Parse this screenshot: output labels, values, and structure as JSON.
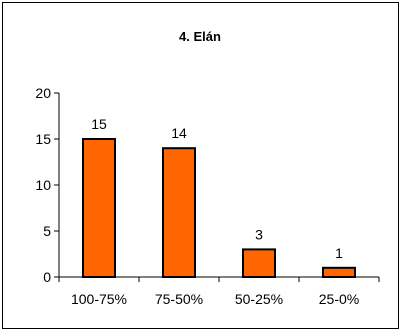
{
  "chart_data": {
    "type": "bar",
    "title": "4. Elán",
    "categories": [
      "100-75%",
      "75-50%",
      "50-25%",
      "25-0%"
    ],
    "values": [
      15,
      14,
      3,
      1
    ],
    "data_labels": [
      "15",
      "14",
      "3",
      "1"
    ],
    "ylim": [
      0,
      20
    ],
    "yticks": [
      0,
      5,
      10,
      15,
      20
    ],
    "ytick_labels": [
      "0",
      "5",
      "10",
      "15",
      "20"
    ],
    "xlabel": "",
    "ylabel": "",
    "grid": false,
    "legend": "none",
    "colors": {
      "bar_fill": "#ff6600",
      "bar_stroke": "#000000",
      "axis": "#000000",
      "background": "#ffffff"
    }
  }
}
